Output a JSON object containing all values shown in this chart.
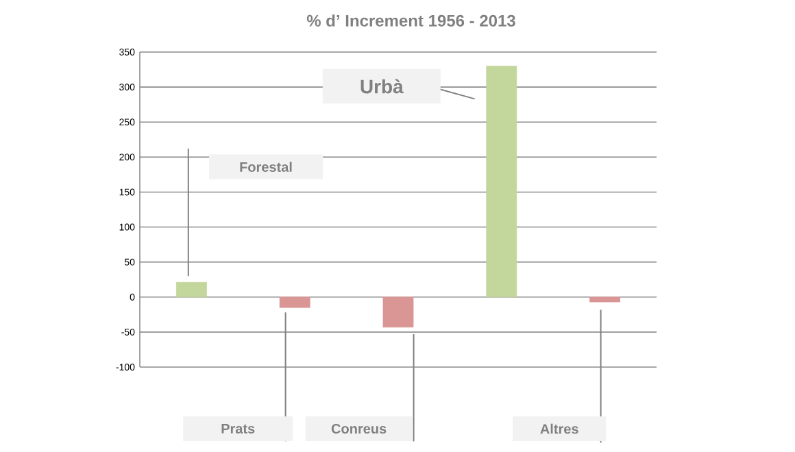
{
  "chart_data": {
    "type": "bar",
    "title": "% d’ Increment 1956 - 2013",
    "categories": [
      null,
      null,
      null,
      null,
      null
    ],
    "values": [
      21,
      -15,
      -43,
      330,
      -7
    ],
    "colors": [
      "#c3d69b",
      "#d99694",
      "#d99694",
      "#c3d69b",
      "#d99694"
    ],
    "ylim": [
      -100,
      350
    ],
    "yticks": [
      -100,
      -50,
      0,
      50,
      100,
      150,
      200,
      250,
      300,
      350
    ],
    "grid": "y",
    "tick_labels": "y",
    "annotations": [
      "Forestal",
      "Prats",
      "Conreus",
      "Urbà",
      "Altres"
    ]
  }
}
